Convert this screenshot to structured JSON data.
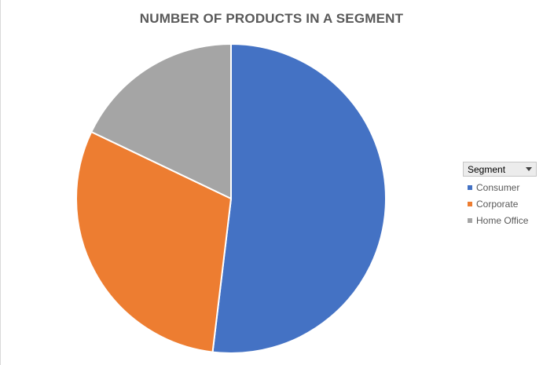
{
  "chart_data": {
    "type": "pie",
    "title": "NUMBER OF PRODUCTS IN A SEGMENT",
    "slices": [
      {
        "label": "Consumer",
        "value": 51.9,
        "color": "#4472C4"
      },
      {
        "label": "Corporate",
        "value": 30.2,
        "color": "#ED7D31"
      },
      {
        "label": "Home Office",
        "value": 17.9,
        "color": "#A5A5A5"
      }
    ],
    "legend": {
      "title": "Segment",
      "placement": "right"
    }
  }
}
